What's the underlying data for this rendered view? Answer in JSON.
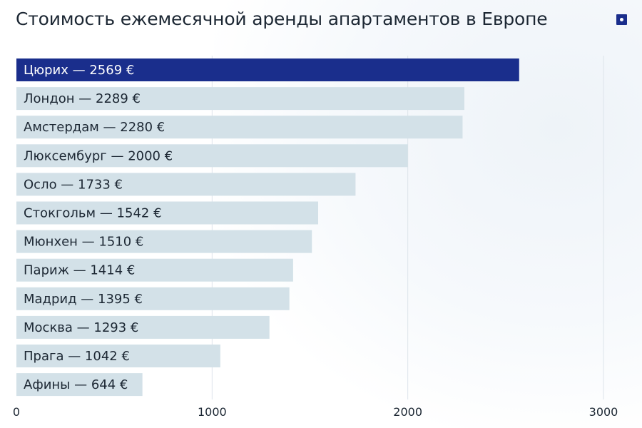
{
  "title": "Стоимость ежемесячной аренды апартаментов в Европе",
  "colors": {
    "highlight": "#1a2e8c",
    "bar": "#d3e1e8",
    "grid": "#dde4ea"
  },
  "chart_data": {
    "type": "bar",
    "orientation": "horizontal",
    "title": "Стоимость ежемесячной аренды апартаментов в Европе",
    "xlabel": "",
    "ylabel": "",
    "xlim": [
      0,
      3000
    ],
    "x_ticks": [
      "0",
      "1000",
      "2000",
      "3000"
    ],
    "grid": "vertical",
    "highlight_index": 0,
    "categories": [
      "Цюрих",
      "Лондон",
      "Амстердам",
      "Люксембург",
      "Осло",
      "Стокгольм",
      "Мюнхен",
      "Париж",
      "Мадрид",
      "Москва",
      "Прага",
      "Афины"
    ],
    "values": [
      2569,
      2289,
      2280,
      2000,
      1733,
      1542,
      1510,
      1414,
      1395,
      1293,
      1042,
      644
    ],
    "labels": [
      "Цюрих — 2569 €",
      "Лондон — 2289 €",
      "Амстердам — 2280 €",
      "Люксембург — 2000 €",
      "Осло — 1733 €",
      "Стокгольм — 1542 €",
      "Мюнхен — 1510 €",
      "Париж — 1414 €",
      "Мадрид — 1395 €",
      "Москва — 1293 €",
      "Прага — 1042 €",
      "Афины — 644 €"
    ]
  }
}
